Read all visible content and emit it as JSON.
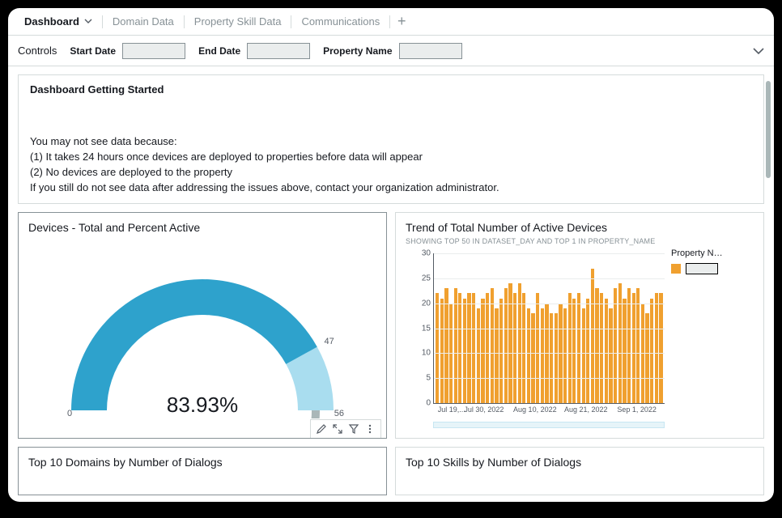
{
  "tabs": {
    "items": [
      {
        "label": "Dashboard",
        "active": true
      },
      {
        "label": "Domain Data",
        "active": false
      },
      {
        "label": "Property Skill Data",
        "active": false
      },
      {
        "label": "Communications",
        "active": false
      }
    ]
  },
  "controls": {
    "label": "Controls",
    "start_date_label": "Start Date",
    "start_date_value": "",
    "end_date_label": "End Date",
    "end_date_value": "",
    "property_name_label": "Property Name",
    "property_name_value": ""
  },
  "intro": {
    "title": "Dashboard Getting Started",
    "body": "You may not see data because:\n(1) It takes 24 hours once devices are deployed to properties before data will appear\n(2) No devices are deployed to the property\nIf you still do not see data after addressing the issues above, contact your organization administrator."
  },
  "gauge_panel": {
    "title": "Devices - Total and Percent Active",
    "percent": 83.93,
    "percent_label": "83.93%",
    "active_value": 47,
    "total_value": 56,
    "start_label": "0",
    "colors": {
      "active": "#2ea2cc",
      "inactive": "#a9ddef",
      "track": "#aab7b8"
    },
    "stroke_width": 44,
    "radius": 140
  },
  "trend_panel": {
    "title": "Trend of Total Number of Active Devices",
    "subtitle": "SHOWING TOP 50 IN DATASET_DAY AND TOP 1 IN PROPERTY_NAME",
    "legend_title": "Property N…",
    "legend_swatch_color": "#f0a02f",
    "bar_color": "#f0a02f",
    "ylim": [
      0,
      30
    ],
    "ytick_step": 5,
    "yticks": [
      0,
      5,
      10,
      15,
      20,
      25,
      30
    ],
    "values": [
      22,
      21,
      23,
      20,
      23,
      22,
      21,
      22,
      22,
      19,
      21,
      22,
      23,
      19,
      21,
      23,
      24,
      22,
      24,
      22,
      19,
      18,
      22,
      19,
      20,
      18,
      18,
      20,
      19,
      22,
      21,
      22,
      19,
      21,
      27,
      23,
      22,
      21,
      19,
      23,
      24,
      21,
      23,
      22,
      23,
      20,
      18,
      21,
      22,
      22
    ],
    "x_ticks": [
      {
        "pos": 0.02,
        "label": "Jul 19,..."
      },
      {
        "pos": 0.22,
        "label": "Jul 30, 2022"
      },
      {
        "pos": 0.44,
        "label": "Aug 10, 2022"
      },
      {
        "pos": 0.66,
        "label": "Aug 21, 2022"
      },
      {
        "pos": 0.88,
        "label": "Sep 1, 2022"
      }
    ]
  },
  "row3": {
    "left_title": "Top 10 Domains by Number of Dialogs",
    "right_title": "Top 10 Skills by Number of Dialogs"
  }
}
